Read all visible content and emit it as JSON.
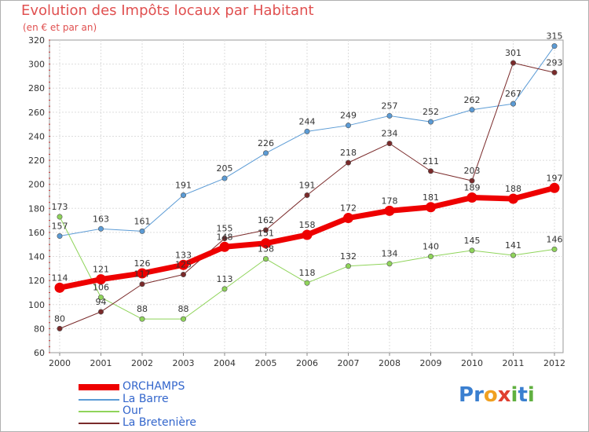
{
  "title": "Evolution des Impôts locaux par Habitant",
  "subtitle": "(en € et par an)",
  "logo": {
    "text": "Proxiti",
    "letters": [
      {
        "ch": "P",
        "color": "#3a7fd0"
      },
      {
        "ch": "r",
        "color": "#3a7fd0"
      },
      {
        "ch": "o",
        "color": "#f0a020"
      },
      {
        "ch": "x",
        "color": "#e04030"
      },
      {
        "ch": "i",
        "color": "#60b040"
      },
      {
        "ch": "t",
        "color": "#3a7fd0"
      },
      {
        "ch": "i",
        "color": "#60b040"
      }
    ]
  },
  "chart_data": {
    "type": "line",
    "title": "Evolution des Impôts locaux par Habitant",
    "ylabel": "(en € et par an)",
    "xlabel": "",
    "ylim": [
      60,
      320
    ],
    "yticks": [
      60,
      80,
      100,
      120,
      140,
      160,
      180,
      200,
      220,
      240,
      260,
      280,
      300,
      320
    ],
    "categories": [
      "2000",
      "2001",
      "2002",
      "2003",
      "2004",
      "2005",
      "2006",
      "2007",
      "2008",
      "2009",
      "2010",
      "2011",
      "2012"
    ],
    "grid": true,
    "series": [
      {
        "name": "La Barre",
        "color": "#5b9bd5",
        "width": 1,
        "values": [
          157,
          163,
          161,
          191,
          205,
          226,
          244,
          249,
          257,
          252,
          262,
          267,
          315
        ]
      },
      {
        "name": "Our",
        "color": "#8fd45a",
        "width": 1,
        "values": [
          173,
          106,
          88,
          88,
          113,
          138,
          118,
          132,
          134,
          140,
          145,
          141,
          146
        ]
      },
      {
        "name": "La Bretenière",
        "color": "#7a2a2a",
        "width": 1,
        "values": [
          80,
          94,
          117,
          125,
          155,
          162,
          191,
          218,
          234,
          211,
          203,
          301,
          293
        ]
      },
      {
        "name": "ORCHAMPS",
        "color": "#ee0000",
        "width": 7,
        "values": [
          114,
          121,
          126,
          133,
          148,
          151,
          158,
          172,
          178,
          181,
          189,
          188,
          197
        ]
      }
    ],
    "legend": [
      "ORCHAMPS",
      "La Barre",
      "Our",
      "La Bretenière"
    ]
  }
}
